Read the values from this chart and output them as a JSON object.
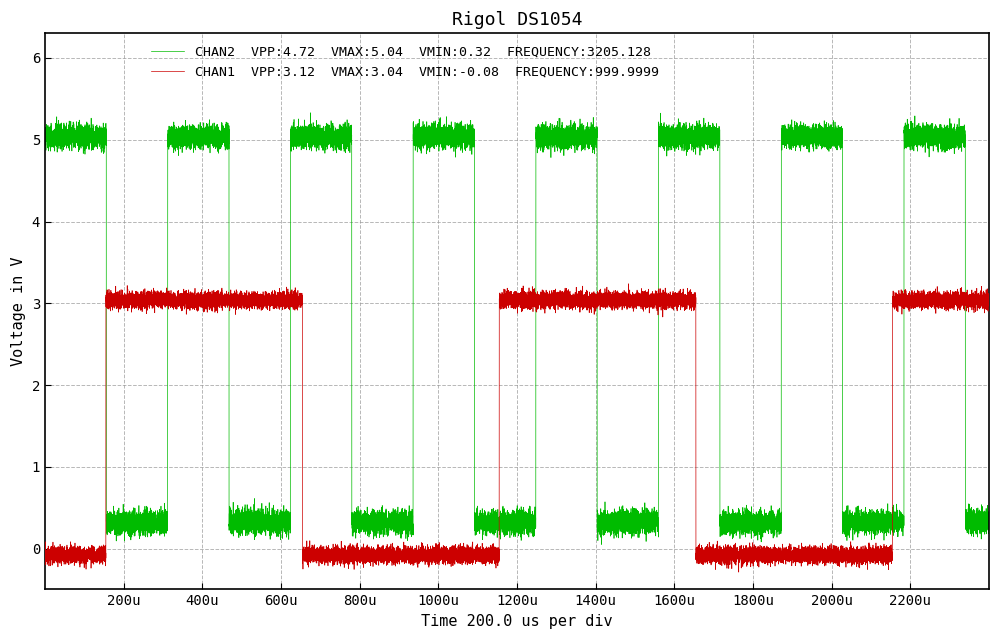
{
  "title": "Rigol DS1054",
  "xlabel": "Time 200.0 us per div",
  "ylabel": "Voltage in V",
  "chan1_label": "CHAN1  VPP:3.12  VMAX:3.04  VMIN:-0.08  FREQUENCY:999.9999",
  "chan2_label": "CHAN2  VPP:4.72  VMAX:5.04  VMIN:0.32  FREQUENCY:3205.128",
  "chan1_color": "#cc0000",
  "chan2_color": "#00bb00",
  "background_color": "#ffffff",
  "grid_color": "#999999",
  "xlim": [
    0,
    2400
  ],
  "ylim": [
    -0.5,
    6.3
  ],
  "yticks": [
    0,
    1,
    2,
    3,
    4,
    5,
    6
  ],
  "xtick_positions": [
    200,
    400,
    600,
    800,
    1000,
    1200,
    1400,
    1600,
    1800,
    2000,
    2200
  ],
  "xtick_labels": [
    "200u",
    "400u",
    "600u",
    "800u",
    "1000u",
    "1200u",
    "1400u",
    "1600u",
    "1800u",
    "2000u",
    "2200u"
  ],
  "chan1_freq_hz": 1000.0,
  "chan1_vhigh": 3.04,
  "chan1_vlow": -0.08,
  "chan1_duty": 0.5,
  "chan1_phase_us": 155,
  "chan2_freq_hz": 3205.128,
  "chan2_vhigh": 5.04,
  "chan2_vlow": 0.32,
  "chan2_duty": 0.5,
  "chan2_phase_us": 0,
  "chan1_noise": 0.05,
  "chan2_noise": 0.07,
  "total_time_us": 2400,
  "pts_per_us": 20
}
